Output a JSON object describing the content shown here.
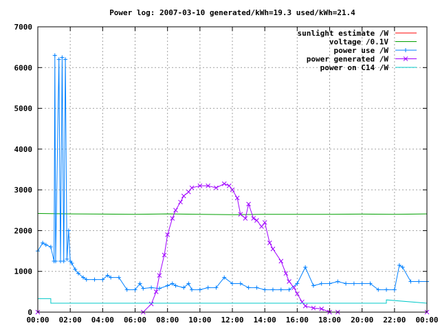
{
  "chart_data": {
    "type": "line",
    "title": "Power log: 2007-03-10 generated/kWh=19.3 used/kWh=21.4",
    "xlabel": "",
    "ylabel": "",
    "xlim": [
      0,
      24
    ],
    "ylim": [
      0,
      7000
    ],
    "grid": true,
    "legend_position": "top-right",
    "x_ticks": [
      "00:00",
      "02:00",
      "04:00",
      "06:00",
      "08:00",
      "10:00",
      "12:00",
      "14:00",
      "16:00",
      "18:00",
      "20:00",
      "22:00",
      "00:00"
    ],
    "y_ticks": [
      "0",
      "1000",
      "2000",
      "3000",
      "4000",
      "5000",
      "6000",
      "7000"
    ],
    "series": [
      {
        "name": "sunlight estimate /W",
        "color": "#ff0000",
        "style": "line",
        "x": [
          0,
          7,
          24
        ],
        "y": [
          0,
          0,
          0
        ]
      },
      {
        "name": "voltage /0.1V",
        "color": "#00a000",
        "style": "line",
        "x": [
          0,
          2,
          4,
          6,
          8,
          10,
          12,
          14,
          16,
          18,
          20,
          22,
          24
        ],
        "y": [
          2420,
          2410,
          2405,
          2400,
          2410,
          2400,
          2390,
          2400,
          2400,
          2400,
          2405,
          2400,
          2410
        ]
      },
      {
        "name": "power use /W",
        "color": "#0080ff",
        "style": "linepoints-plus",
        "x": [
          0,
          0.3,
          0.5,
          0.8,
          1.0,
          1.05,
          1.1,
          1.3,
          1.4,
          1.5,
          1.6,
          1.7,
          1.8,
          1.9,
          2.0,
          2.1,
          2.3,
          2.5,
          2.8,
          3.0,
          3.5,
          4.0,
          4.3,
          4.5,
          5.0,
          5.5,
          6.0,
          6.3,
          6.5,
          7.0,
          7.5,
          8.0,
          8.3,
          8.5,
          9.0,
          9.3,
          9.5,
          10.0,
          10.5,
          11.0,
          11.5,
          12.0,
          12.5,
          13.0,
          13.5,
          14.0,
          14.5,
          15.0,
          15.5,
          16.0,
          16.5,
          17.0,
          17.5,
          18.0,
          18.5,
          19.0,
          19.5,
          20.0,
          20.5,
          21.0,
          21.5,
          22.0,
          22.3,
          22.5,
          23.0,
          23.5,
          24.0
        ],
        "y": [
          1500,
          1700,
          1650,
          1600,
          1250,
          6300,
          1250,
          6200,
          1250,
          6250,
          1250,
          6200,
          1300,
          2000,
          1250,
          1200,
          1050,
          950,
          850,
          800,
          800,
          800,
          900,
          850,
          850,
          550,
          550,
          700,
          580,
          600,
          580,
          650,
          700,
          650,
          600,
          700,
          550,
          550,
          600,
          600,
          850,
          700,
          700,
          600,
          600,
          550,
          550,
          550,
          550,
          700,
          1100,
          650,
          700,
          700,
          750,
          700,
          700,
          700,
          700,
          550,
          550,
          550,
          1150,
          1100,
          750,
          750,
          750
        ]
      },
      {
        "name": "power generated /W",
        "color": "#a000ff",
        "style": "linepoints-x",
        "x": [
          0,
          6.5,
          7.0,
          7.3,
          7.5,
          7.8,
          8.0,
          8.3,
          8.5,
          8.8,
          9.0,
          9.3,
          9.5,
          10.0,
          10.5,
          11.0,
          11.5,
          11.8,
          12.0,
          12.3,
          12.5,
          12.8,
          13.0,
          13.3,
          13.5,
          13.8,
          14.0,
          14.3,
          14.5,
          15.0,
          15.3,
          15.5,
          15.8,
          16.0,
          16.3,
          16.5,
          17.0,
          17.5,
          18.0,
          18.5,
          24.0
        ],
        "y": [
          0,
          0,
          200,
          500,
          900,
          1400,
          1900,
          2300,
          2500,
          2700,
          2850,
          2950,
          3050,
          3100,
          3100,
          3050,
          3150,
          3100,
          3000,
          2800,
          2400,
          2300,
          2650,
          2300,
          2250,
          2100,
          2200,
          1700,
          1550,
          1250,
          950,
          750,
          600,
          450,
          250,
          150,
          100,
          80,
          0,
          0,
          0
        ]
      },
      {
        "name": "power on C14 /W",
        "color": "#00c8c8",
        "style": "line",
        "x": [
          0,
          0.8,
          0.8,
          21.5,
          21.5,
          24.0
        ],
        "y": [
          330,
          330,
          220,
          220,
          300,
          220
        ]
      }
    ]
  }
}
